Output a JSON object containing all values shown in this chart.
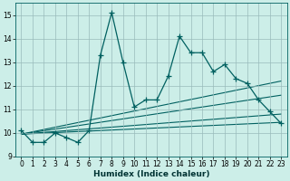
{
  "xlabel": "Humidex (Indice chaleur)",
  "ylabel": "",
  "background_color": "#cceee8",
  "grid_color": "#99bbbb",
  "line_color": "#006060",
  "xlim": [
    -0.5,
    23.5
  ],
  "ylim": [
    9,
    15.5
  ],
  "yticks": [
    9,
    10,
    11,
    12,
    13,
    14,
    15
  ],
  "xticks": [
    0,
    1,
    2,
    3,
    4,
    5,
    6,
    7,
    8,
    9,
    10,
    11,
    12,
    13,
    14,
    15,
    16,
    17,
    18,
    19,
    20,
    21,
    22,
    23
  ],
  "main_x": [
    0,
    1,
    2,
    3,
    4,
    5,
    6,
    7,
    8,
    9,
    10,
    11,
    12,
    13,
    14,
    15,
    16,
    17,
    18,
    19,
    20,
    21,
    22,
    23
  ],
  "main_y": [
    10.1,
    9.6,
    9.6,
    10.0,
    9.8,
    9.6,
    10.1,
    13.3,
    15.1,
    13.0,
    11.1,
    11.4,
    11.4,
    12.4,
    14.1,
    13.4,
    13.4,
    12.6,
    12.9,
    12.3,
    12.1,
    11.4,
    10.9,
    10.4
  ],
  "reg_lines": [
    {
      "x": [
        0,
        23
      ],
      "y": [
        9.95,
        12.2
      ]
    },
    {
      "x": [
        0,
        23
      ],
      "y": [
        9.95,
        11.6
      ]
    },
    {
      "x": [
        0,
        23
      ],
      "y": [
        9.95,
        10.8
      ]
    },
    {
      "x": [
        0,
        23
      ],
      "y": [
        9.95,
        10.45
      ]
    }
  ]
}
